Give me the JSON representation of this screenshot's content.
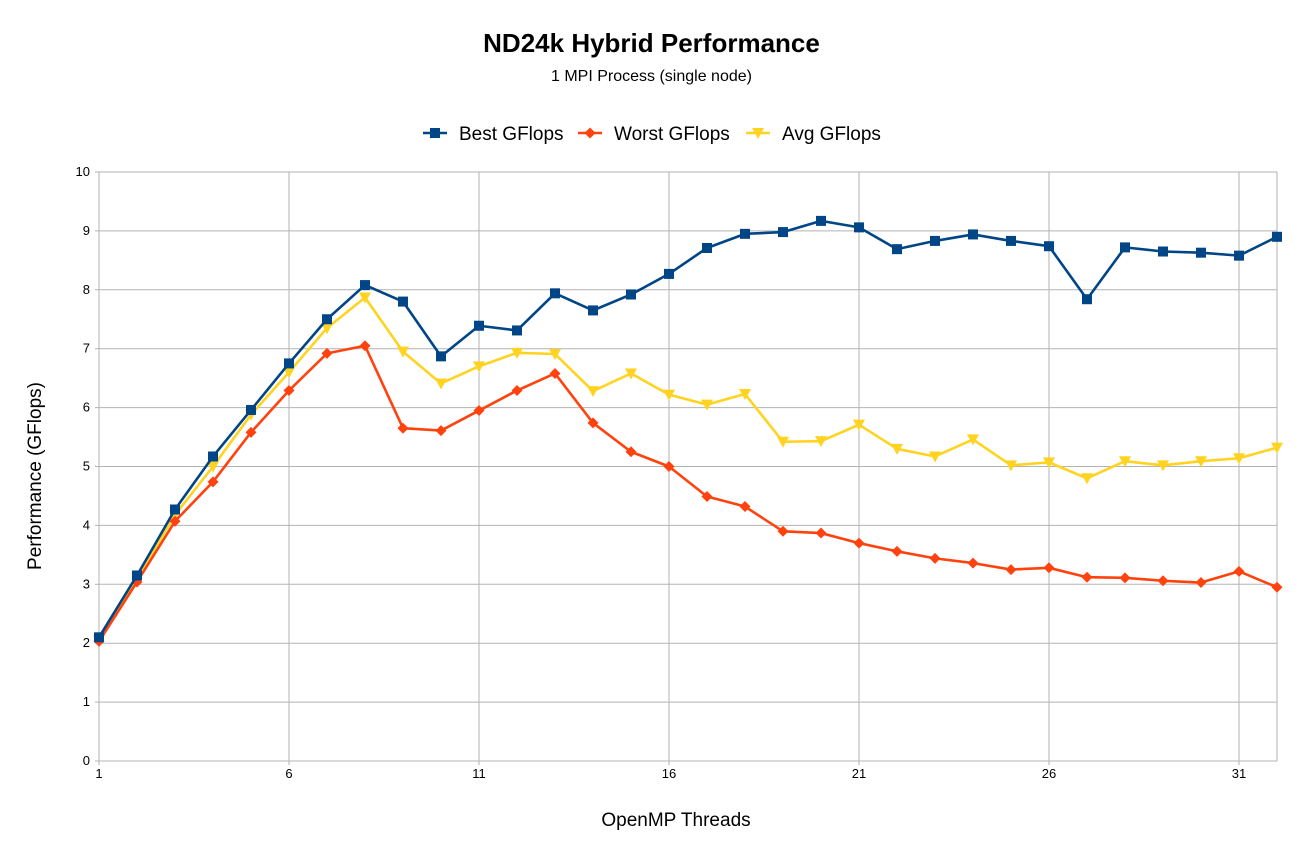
{
  "chart_data": {
    "type": "line",
    "title": "ND24k Hybrid Performance",
    "subtitle": "1 MPI Process (single node)",
    "xlabel": "OpenMP Threads",
    "ylabel": "Performance (GFlops)",
    "xlim": [
      1,
      32
    ],
    "ylim": [
      0,
      10
    ],
    "x_ticks": [
      1,
      6,
      11,
      16,
      21,
      26,
      31
    ],
    "y_ticks": [
      0,
      1,
      2,
      3,
      4,
      5,
      6,
      7,
      8,
      9,
      10
    ],
    "grid": true,
    "legend_position": "top",
    "x": [
      1,
      2,
      3,
      4,
      5,
      6,
      7,
      8,
      9,
      10,
      11,
      12,
      13,
      14,
      15,
      16,
      17,
      18,
      19,
      20,
      21,
      22,
      23,
      24,
      25,
      26,
      27,
      28,
      29,
      30,
      31,
      32
    ],
    "series": [
      {
        "name": "Best GFlops",
        "color": "#004586",
        "marker": "square",
        "values": [
          2.1,
          3.15,
          4.27,
          5.17,
          5.96,
          6.75,
          7.5,
          8.08,
          7.8,
          6.87,
          7.39,
          7.31,
          7.94,
          7.65,
          7.92,
          8.27,
          8.71,
          8.95,
          8.98,
          9.17,
          9.06,
          8.69,
          8.83,
          8.94,
          8.83,
          8.74,
          7.84,
          8.72,
          8.65,
          8.63,
          8.58,
          8.9
        ]
      },
      {
        "name": "Worst GFlops",
        "color": "#ff420e",
        "marker": "diamond",
        "values": [
          2.03,
          3.04,
          4.07,
          4.74,
          5.58,
          6.29,
          6.92,
          7.05,
          5.65,
          5.61,
          5.95,
          6.29,
          6.58,
          5.74,
          5.25,
          5.0,
          4.49,
          4.32,
          3.9,
          3.87,
          3.7,
          3.56,
          3.44,
          3.36,
          3.25,
          3.28,
          3.12,
          3.11,
          3.06,
          3.03,
          3.22,
          2.95
        ]
      },
      {
        "name": "Avg GFlops",
        "color": "#ffd320",
        "marker": "triangle-down",
        "values": [
          2.05,
          3.1,
          4.18,
          5.0,
          5.88,
          6.6,
          7.35,
          7.87,
          6.95,
          6.41,
          6.7,
          6.93,
          6.91,
          6.28,
          6.58,
          6.22,
          6.05,
          6.23,
          5.42,
          5.43,
          5.71,
          5.3,
          5.17,
          5.46,
          5.02,
          5.07,
          4.8,
          5.09,
          5.02,
          5.09,
          5.14,
          5.32
        ]
      }
    ]
  }
}
